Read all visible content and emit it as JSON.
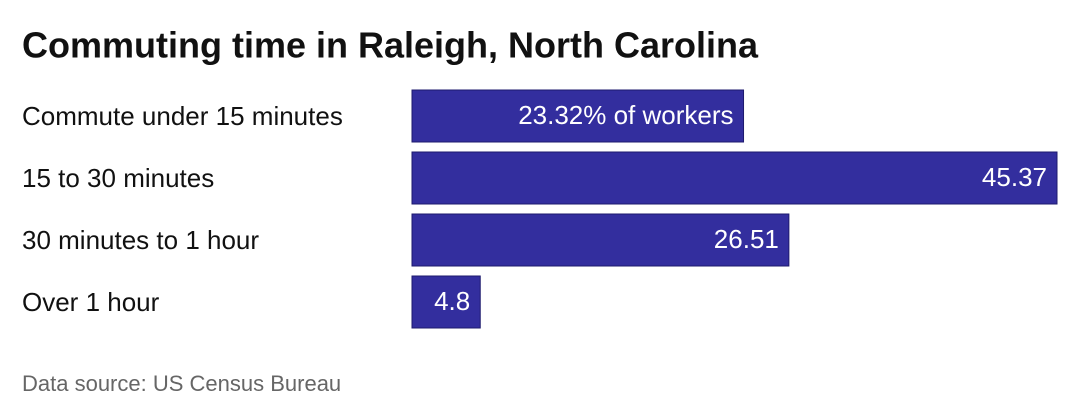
{
  "chart_data": {
    "type": "bar",
    "orientation": "horizontal",
    "title": "Commuting time in Raleigh, North Carolina",
    "categories": [
      "Commute under 15 minutes",
      "15 to 30 minutes",
      "30 minutes to 1 hour",
      "Over 1 hour"
    ],
    "values": [
      23.32,
      45.37,
      26.51,
      4.8
    ],
    "value_labels": [
      "23.32% of workers",
      "45.37",
      "26.51",
      "4.8"
    ],
    "color": "#332e9e",
    "source": "Data source: US Census Bureau"
  }
}
